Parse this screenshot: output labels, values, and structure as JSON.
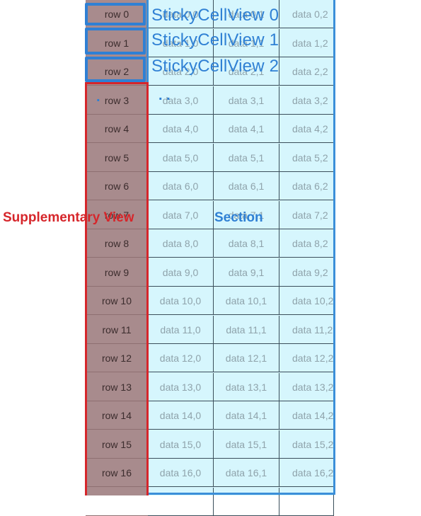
{
  "labels": {
    "supplementary_view": "Supplementary View",
    "section": "Section",
    "sticky": [
      "StickyCellView 0",
      "StickyCellView 1",
      "StickyCellView 2"
    ]
  },
  "rows": [
    {
      "header": "row 0",
      "cells": [
        "data 0,0",
        "data 0,1",
        "data 0,2"
      ]
    },
    {
      "header": "row 1",
      "cells": [
        "data 1,0",
        "data 1,1",
        "data 1,2"
      ]
    },
    {
      "header": "row 2",
      "cells": [
        "data 2,0",
        "data 2,1",
        "data 2,2"
      ]
    },
    {
      "header": "row 3",
      "cells": [
        "data 3,0",
        "data 3,1",
        "data 3,2"
      ]
    },
    {
      "header": "row 4",
      "cells": [
        "data 4,0",
        "data 4,1",
        "data 4,2"
      ]
    },
    {
      "header": "row 5",
      "cells": [
        "data 5,0",
        "data 5,1",
        "data 5,2"
      ]
    },
    {
      "header": "row 6",
      "cells": [
        "data 6,0",
        "data 6,1",
        "data 6,2"
      ]
    },
    {
      "header": "row 7",
      "cells": [
        "data 7,0",
        "data 7,1",
        "data 7,2"
      ]
    },
    {
      "header": "row 8",
      "cells": [
        "data 8,0",
        "data 8,1",
        "data 8,2"
      ]
    },
    {
      "header": "row 9",
      "cells": [
        "data 9,0",
        "data 9,1",
        "data 9,2"
      ]
    },
    {
      "header": "row 10",
      "cells": [
        "data 10,0",
        "data 10,1",
        "data 10,2"
      ]
    },
    {
      "header": "row 11",
      "cells": [
        "data 11,0",
        "data 11,1",
        "data 11,2"
      ]
    },
    {
      "header": "row 12",
      "cells": [
        "data 12,0",
        "data 12,1",
        "data 12,2"
      ]
    },
    {
      "header": "row 13",
      "cells": [
        "data 13,0",
        "data 13,1",
        "data 13,2"
      ]
    },
    {
      "header": "row 14",
      "cells": [
        "data 14,0",
        "data 14,1",
        "data 14,2"
      ]
    },
    {
      "header": "row 15",
      "cells": [
        "data 15,0",
        "data 15,1",
        "data 15,2"
      ]
    },
    {
      "header": "row 16",
      "cells": [
        "data 16,0",
        "data 16,1",
        "data 16,2"
      ]
    },
    {
      "header": "",
      "cells": [
        "",
        "",
        ""
      ]
    }
  ],
  "colors": {
    "row_header_bg": "#a88b8d",
    "data_bg": "#d6f6fd",
    "section_outline": "#3b8fd9",
    "supplementary_outline": "#d6262b",
    "supplementary_label": "#d6262b",
    "section_label": "#2f80d4"
  }
}
